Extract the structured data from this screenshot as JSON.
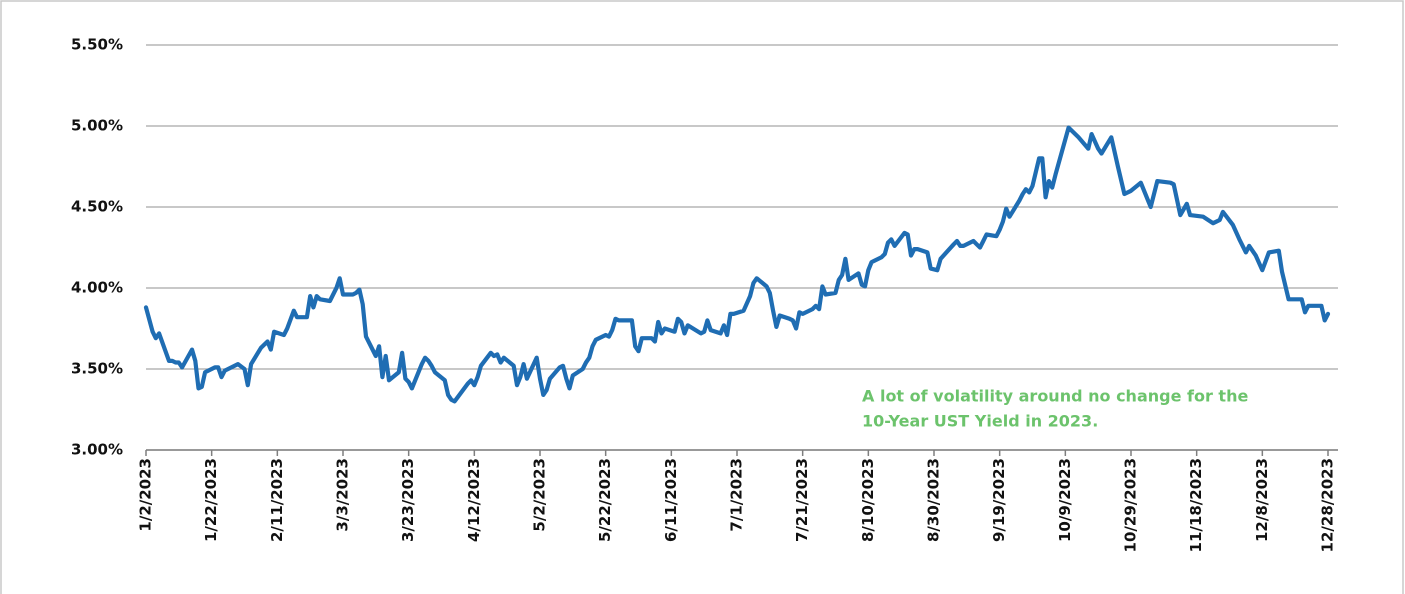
{
  "chart_data": {
    "type": "line",
    "color": "#1f6db3",
    "annotation": [
      "A lot of volatility around no change for the",
      "10-Year UST Yield in 2023."
    ],
    "annotation_color": "#6cc36c",
    "grid": true,
    "xlim": [
      "1/2/2023",
      "12/28/2023"
    ],
    "xticks": [
      "1/2/2023",
      "1/22/2023",
      "2/11/2023",
      "3/3/2023",
      "3/23/2023",
      "4/12/2023",
      "5/2/2023",
      "5/22/2023",
      "6/11/2023",
      "7/1/2023",
      "7/21/2023",
      "8/10/2023",
      "8/30/2023",
      "9/19/2023",
      "10/9/2023",
      "10/29/2023",
      "11/18/2023",
      "12/8/2023",
      "12/28/2023"
    ],
    "ylim": [
      3.0,
      5.5
    ],
    "yticks": [
      {
        "value": 3.0,
        "label": "3.00%"
      },
      {
        "value": 3.5,
        "label": "3.50%"
      },
      {
        "value": 4.0,
        "label": "4.00%"
      },
      {
        "value": 4.5,
        "label": "4.50%"
      },
      {
        "value": 5.0,
        "label": "5.00%"
      },
      {
        "value": 5.5,
        "label": "5.50%"
      }
    ],
    "x": [
      "1/2/2023",
      "1/4/2023",
      "1/5/2023",
      "1/6/2023",
      "1/9/2023",
      "1/10/2023",
      "1/11/2023",
      "1/12/2023",
      "1/13/2023",
      "1/16/2023",
      "1/17/2023",
      "1/18/2023",
      "1/19/2023",
      "1/20/2023",
      "1/23/2023",
      "1/24/2023",
      "1/25/2023",
      "1/26/2023",
      "1/27/2023",
      "1/30/2023",
      "2/1/2023",
      "2/2/2023",
      "2/3/2023",
      "2/6/2023",
      "2/8/2023",
      "2/9/2023",
      "2/10/2023",
      "2/13/2023",
      "2/14/2023",
      "2/16/2023",
      "2/17/2023",
      "2/20/2023",
      "2/21/2023",
      "2/22/2023",
      "2/23/2023",
      "2/24/2023",
      "2/27/2023",
      "3/1/2023",
      "3/2/2023",
      "3/3/2023",
      "3/6/2023",
      "3/7/2023",
      "3/8/2023",
      "3/9/2023",
      "3/10/2023",
      "3/13/2023",
      "3/14/2023",
      "3/15/2023",
      "3/16/2023",
      "3/17/2023",
      "3/20/2023",
      "3/21/2023",
      "3/22/2023",
      "3/23/2023",
      "3/24/2023",
      "3/27/2023",
      "3/28/2023",
      "3/29/2023",
      "3/30/2023",
      "3/31/2023",
      "4/3/2023",
      "4/4/2023",
      "4/5/2023",
      "4/6/2023",
      "4/10/2023",
      "4/11/2023",
      "4/12/2023",
      "4/13/2023",
      "4/14/2023",
      "4/17/2023",
      "4/18/2023",
      "4/19/2023",
      "4/20/2023",
      "4/21/2023",
      "4/24/2023",
      "4/25/2023",
      "4/26/2023",
      "4/27/2023",
      "4/28/2023",
      "5/1/2023",
      "5/2/2023",
      "5/3/2023",
      "5/4/2023",
      "5/5/2023",
      "5/8/2023",
      "5/9/2023",
      "5/10/2023",
      "5/11/2023",
      "5/12/2023",
      "5/15/2023",
      "5/16/2023",
      "5/17/2023",
      "5/18/2023",
      "5/19/2023",
      "5/22/2023",
      "5/23/2023",
      "5/24/2023",
      "5/25/2023",
      "5/26/2023",
      "5/30/2023",
      "5/31/2023",
      "6/1/2023",
      "6/2/2023",
      "6/5/2023",
      "6/6/2023",
      "6/7/2023",
      "6/8/2023",
      "6/9/2023",
      "6/12/2023",
      "6/13/2023",
      "6/14/2023",
      "6/15/2023",
      "6/16/2023",
      "6/20/2023",
      "6/21/2023",
      "6/22/2023",
      "6/23/2023",
      "6/26/2023",
      "6/27/2023",
      "6/28/2023",
      "6/29/2023",
      "6/30/2023",
      "7/3/2023",
      "7/5/2023",
      "7/6/2023",
      "7/7/2023",
      "7/10/2023",
      "7/11/2023",
      "7/12/2023",
      "7/13/2023",
      "7/14/2023",
      "7/17/2023",
      "7/18/2023",
      "7/19/2023",
      "7/20/2023",
      "7/21/2023",
      "7/24/2023",
      "7/25/2023",
      "7/26/2023",
      "7/27/2023",
      "7/28/2023",
      "7/31/2023",
      "8/1/2023",
      "8/2/2023",
      "8/3/2023",
      "8/4/2023",
      "8/7/2023",
      "8/8/2023",
      "8/9/2023",
      "8/10/2023",
      "8/11/2023",
      "8/14/2023",
      "8/15/2023",
      "8/16/2023",
      "8/17/2023",
      "8/18/2023",
      "8/21/2023",
      "8/22/2023",
      "8/23/2023",
      "8/24/2023",
      "8/25/2023",
      "8/28/2023",
      "8/29/2023",
      "8/31/2023",
      "9/1/2023",
      "9/5/2023",
      "9/6/2023",
      "9/7/2023",
      "9/8/2023",
      "9/11/2023",
      "9/12/2023",
      "9/13/2023",
      "9/14/2023",
      "9/15/2023",
      "9/18/2023",
      "9/19/2023",
      "9/20/2023",
      "9/21/2023",
      "9/22/2023",
      "9/25/2023",
      "9/26/2023",
      "9/27/2023",
      "9/28/2023",
      "9/29/2023",
      "10/1/2023",
      "10/2/2023",
      "10/3/2023",
      "10/4/2023",
      "10/5/2023",
      "10/6/2023",
      "10/10/2023",
      "10/13/2023",
      "10/16/2023",
      "10/17/2023",
      "10/19/2023",
      "10/20/2023",
      "10/23/2023",
      "10/25/2023",
      "10/27/2023",
      "10/29/2023",
      "11/1/2023",
      "11/3/2023",
      "11/4/2023",
      "11/6/2023",
      "11/10/2023",
      "11/11/2023",
      "11/13/2023",
      "11/15/2023",
      "11/16/2023",
      "11/20/2023",
      "11/23/2023",
      "11/25/2023",
      "11/26/2023",
      "11/29/2023",
      "12/1/2023",
      "12/3/2023",
      "12/4/2023",
      "12/6/2023",
      "12/8/2023",
      "12/10/2023",
      "12/13/2023",
      "12/14/2023",
      "12/16/2023",
      "12/20/2023",
      "12/21/2023",
      "12/22/2023",
      "12/26/2023",
      "12/27/2023",
      "12/28/2023"
    ],
    "values": [
      3.88,
      3.73,
      3.69,
      3.72,
      3.55,
      3.55,
      3.54,
      3.54,
      3.51,
      3.62,
      3.55,
      3.38,
      3.39,
      3.48,
      3.51,
      3.51,
      3.45,
      3.49,
      3.5,
      3.53,
      3.5,
      3.4,
      3.53,
      3.63,
      3.67,
      3.62,
      3.73,
      3.71,
      3.75,
      3.86,
      3.82,
      3.82,
      3.95,
      3.88,
      3.95,
      3.93,
      3.92,
      4.0,
      4.06,
      3.96,
      3.96,
      3.97,
      3.99,
      3.9,
      3.7,
      3.58,
      3.64,
      3.45,
      3.58,
      3.43,
      3.48,
      3.6,
      3.44,
      3.42,
      3.38,
      3.53,
      3.57,
      3.55,
      3.52,
      3.48,
      3.43,
      3.34,
      3.31,
      3.3,
      3.41,
      3.43,
      3.4,
      3.45,
      3.52,
      3.6,
      3.58,
      3.59,
      3.54,
      3.57,
      3.52,
      3.4,
      3.45,
      3.53,
      3.44,
      3.57,
      3.44,
      3.34,
      3.37,
      3.44,
      3.51,
      3.52,
      3.44,
      3.38,
      3.46,
      3.5,
      3.54,
      3.57,
      3.64,
      3.68,
      3.71,
      3.7,
      3.74,
      3.81,
      3.8,
      3.8,
      3.64,
      3.61,
      3.69,
      3.69,
      3.67,
      3.79,
      3.72,
      3.75,
      3.73,
      3.81,
      3.79,
      3.72,
      3.77,
      3.72,
      3.73,
      3.8,
      3.74,
      3.72,
      3.77,
      3.71,
      3.84,
      3.84,
      3.86,
      3.95,
      4.03,
      4.06,
      4.01,
      3.97,
      3.86,
      3.76,
      3.83,
      3.81,
      3.8,
      3.75,
      3.85,
      3.84,
      3.87,
      3.89,
      3.87,
      4.01,
      3.96,
      3.97,
      4.05,
      4.08,
      4.18,
      4.05,
      4.09,
      4.02,
      4.01,
      4.11,
      4.16,
      4.19,
      4.21,
      4.28,
      4.3,
      4.26,
      4.34,
      4.33,
      4.2,
      4.24,
      4.24,
      4.22,
      4.12,
      4.11,
      4.18,
      4.27,
      4.29,
      4.26,
      4.26,
      4.29,
      4.27,
      4.25,
      4.29,
      4.33,
      4.32,
      4.36,
      4.41,
      4.49,
      4.44,
      4.54,
      4.58,
      4.61,
      4.59,
      4.63,
      4.8,
      4.8,
      4.56,
      4.66,
      4.62,
      4.7,
      4.99,
      4.93,
      4.86,
      4.95,
      4.86,
      4.83,
      4.93,
      4.75,
      4.58,
      4.6,
      4.65,
      4.55,
      4.5,
      4.66,
      4.65,
      4.64,
      4.45,
      4.52,
      4.45,
      4.44,
      4.4,
      4.42,
      4.47,
      4.39,
      4.3,
      4.22,
      4.26,
      4.2,
      4.11,
      4.22,
      4.23,
      4.1,
      3.93,
      3.93,
      3.85,
      3.89,
      3.89,
      3.8,
      3.84
    ]
  }
}
